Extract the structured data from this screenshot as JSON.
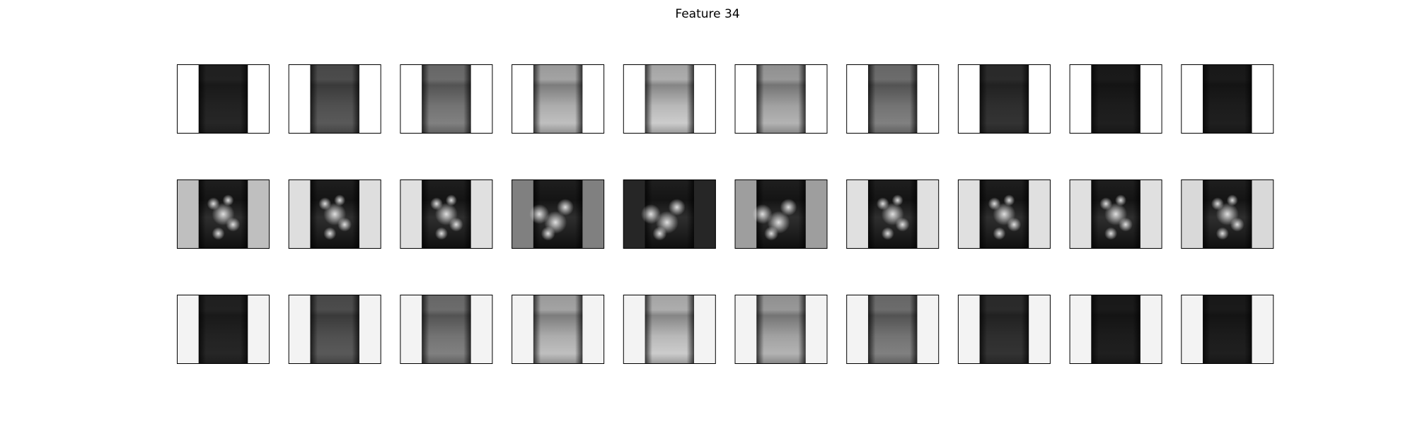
{
  "header": {
    "title": "Feature 34"
  }
}
